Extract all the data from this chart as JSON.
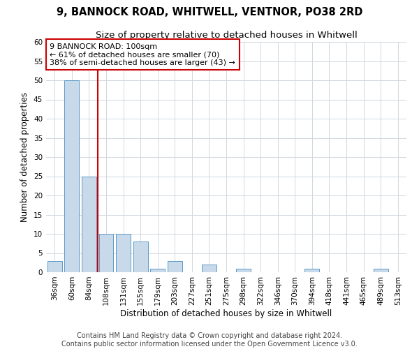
{
  "title": "9, BANNOCK ROAD, WHITWELL, VENTNOR, PO38 2RD",
  "subtitle": "Size of property relative to detached houses in Whitwell",
  "xlabel": "Distribution of detached houses by size in Whitwell",
  "ylabel": "Number of detached properties",
  "categories": [
    "36sqm",
    "60sqm",
    "84sqm",
    "108sqm",
    "131sqm",
    "155sqm",
    "179sqm",
    "203sqm",
    "227sqm",
    "251sqm",
    "275sqm",
    "298sqm",
    "322sqm",
    "346sqm",
    "370sqm",
    "394sqm",
    "418sqm",
    "441sqm",
    "465sqm",
    "489sqm",
    "513sqm"
  ],
  "values": [
    3,
    50,
    25,
    10,
    10,
    8,
    1,
    3,
    0,
    2,
    0,
    1,
    0,
    0,
    0,
    1,
    0,
    0,
    0,
    1,
    0
  ],
  "bar_color": "#c8daea",
  "bar_edge_color": "#5b9bc8",
  "vline_x": 2.5,
  "vline_color": "#cc0000",
  "annotation_text": "9 BANNOCK ROAD: 100sqm\n← 61% of detached houses are smaller (70)\n38% of semi-detached houses are larger (43) →",
  "annotation_box_color": "#cc0000",
  "ylim": [
    0,
    60
  ],
  "yticks": [
    0,
    5,
    10,
    15,
    20,
    25,
    30,
    35,
    40,
    45,
    50,
    55,
    60
  ],
  "footer": "Contains HM Land Registry data © Crown copyright and database right 2024.\nContains public sector information licensed under the Open Government Licence v3.0.",
  "fig_bg_color": "#ffffff",
  "plot_bg_color": "#ffffff",
  "grid_color": "#d0d8e0",
  "title_fontsize": 10.5,
  "subtitle_fontsize": 9.5,
  "axis_label_fontsize": 8.5,
  "tick_fontsize": 7.5,
  "annotation_fontsize": 8,
  "footer_fontsize": 7
}
